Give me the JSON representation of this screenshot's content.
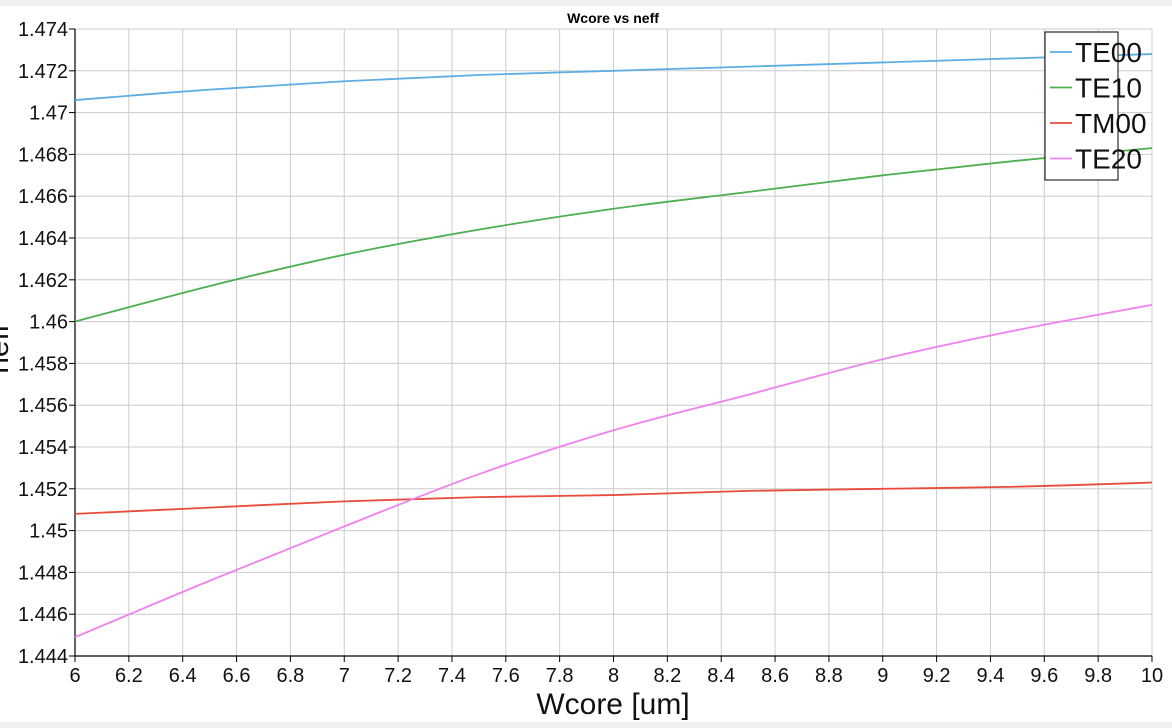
{
  "chart_data": {
    "type": "line",
    "title": "Wcore vs neff",
    "xlabel": "Wcore [um]",
    "ylabel": "neff",
    "xlim": [
      6,
      10
    ],
    "ylim": [
      1.444,
      1.474
    ],
    "x_ticks": [
      "6",
      "6.2",
      "6.4",
      "6.6",
      "6.8",
      "7",
      "7.2",
      "7.4",
      "7.6",
      "7.8",
      "8",
      "8.2",
      "8.4",
      "8.6",
      "8.8",
      "9",
      "9.2",
      "9.4",
      "9.6",
      "9.8",
      "10"
    ],
    "y_ticks": [
      "1.474",
      "1.472",
      "1.47",
      "1.468",
      "1.466",
      "1.464",
      "1.462",
      "1.46",
      "1.458",
      "1.456",
      "1.454",
      "1.452",
      "1.45",
      "1.448",
      "1.446",
      "1.444"
    ],
    "grid": true,
    "legend_position": "top-right",
    "x": [
      6.0,
      6.5,
      7.0,
      7.5,
      8.0,
      8.5,
      9.0,
      9.5,
      10.0
    ],
    "series": [
      {
        "name": "TE00",
        "color": "#5dade2",
        "values": [
          1.4706,
          1.4711,
          1.4715,
          1.4718,
          1.472,
          1.4722,
          1.4724,
          1.4726,
          1.4728
        ]
      },
      {
        "name": "TE10",
        "color": "#4caf50",
        "values": [
          1.46,
          1.4617,
          1.4632,
          1.4644,
          1.4654,
          1.4662,
          1.467,
          1.4677,
          1.4683
        ]
      },
      {
        "name": "TM00",
        "color": "#e74c3c",
        "values": [
          1.4508,
          1.4511,
          1.4514,
          1.4516,
          1.4517,
          1.4519,
          1.452,
          1.4521,
          1.4523
        ]
      },
      {
        "name": "TE20",
        "color": "#ee82ee",
        "values": [
          1.4449,
          1.4476,
          1.4502,
          1.4527,
          1.4548,
          1.4565,
          1.4582,
          1.4596,
          1.4608
        ]
      }
    ]
  }
}
